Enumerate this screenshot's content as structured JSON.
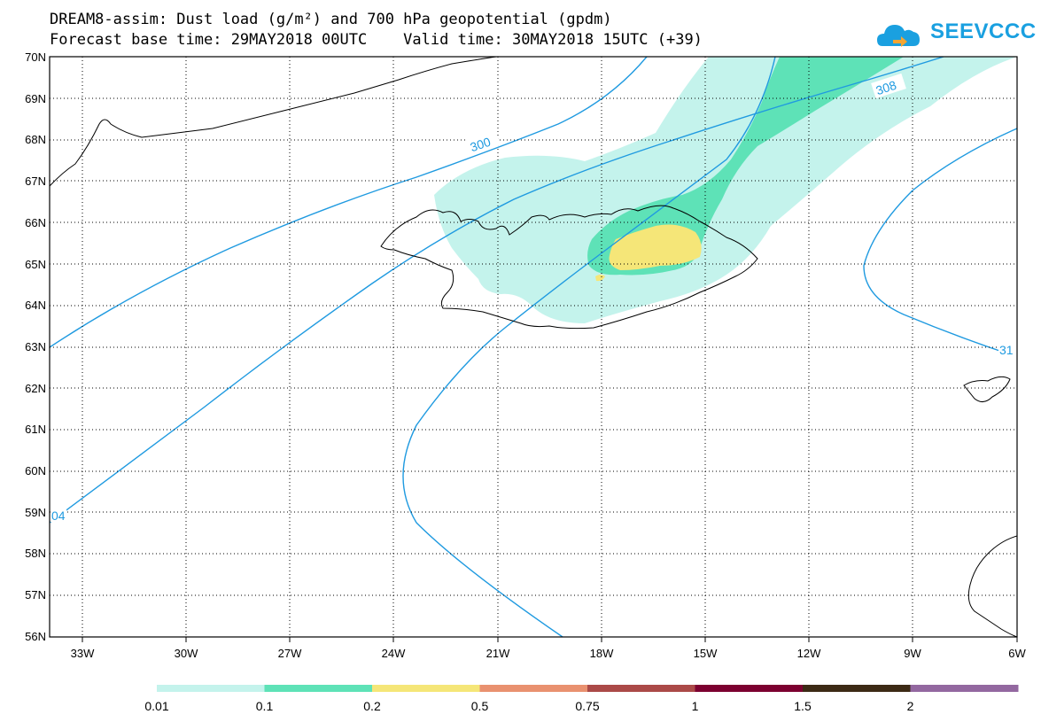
{
  "title_line1": "DREAM8-assim: Dust load (g/m²) and 700 hPa geopotential (gpdm)",
  "title_line2": "Forecast base time: 29MAY2018 00UTC    Valid time: 30MAY2018 15UTC (+39)",
  "logo": {
    "text": "SEEVCCC",
    "icon": "cloud-icon",
    "color": "#1aa0e0"
  },
  "map": {
    "lon_range": [
      -34.33,
      -6
    ],
    "lat_range": [
      56,
      70
    ],
    "lat_labels": [
      "56N",
      "57N",
      "58N",
      "59N",
      "60N",
      "61N",
      "62N",
      "63N",
      "64N",
      "65N",
      "66N",
      "67N",
      "68N",
      "69N",
      "70N"
    ],
    "lon_labels": [
      "33W",
      "30W",
      "27W",
      "24W",
      "21W",
      "18W",
      "15W",
      "12W",
      "9W",
      "6W"
    ],
    "contour_color": "#1f9ae0",
    "contour_labels": [
      "300",
      "308",
      "04",
      "31"
    ]
  },
  "colorbar": {
    "labels": [
      "0.01",
      "0.1",
      "0.2",
      "0.5",
      "0.75",
      "1",
      "1.5",
      "2"
    ],
    "colors": [
      "#c4f3ec",
      "#5ee2b7",
      "#f5e678",
      "#e99170",
      "#ab4a48",
      "#7c0030",
      "#3c2a15",
      "#9368a0"
    ]
  }
}
